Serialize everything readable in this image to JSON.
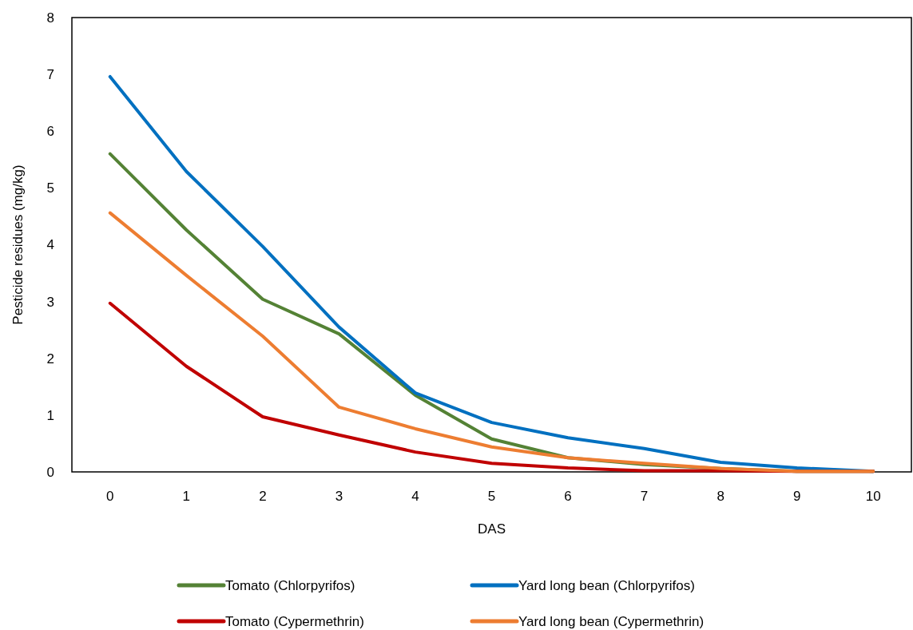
{
  "chart_data": {
    "type": "line",
    "xlabel": "DAS",
    "ylabel": "Pesticide residues (mg/kg)",
    "categories": [
      "0",
      "1",
      "2",
      "3",
      "4",
      "5",
      "6",
      "7",
      "8",
      "9",
      "10"
    ],
    "ylim": [
      0,
      8
    ],
    "yticks": [
      0,
      1,
      2,
      3,
      4,
      5,
      6,
      7,
      8
    ],
    "grid": false,
    "legend": "bottom",
    "marker": "none",
    "line_style": "solid",
    "series": [
      {
        "name": "Tomato (Chlorpyrifos)",
        "color": "#548235",
        "values": [
          5.6,
          4.26,
          3.04,
          2.43,
          1.35,
          0.58,
          0.25,
          0.13,
          0.06,
          0.01,
          0.01
        ]
      },
      {
        "name": "Yard long bean (Chlorpyrifos)",
        "color": "#0070c0",
        "values": [
          6.96,
          5.29,
          3.97,
          2.55,
          1.39,
          0.87,
          0.6,
          0.41,
          0.17,
          0.07,
          0.01
        ]
      },
      {
        "name": "Tomato (Cypermethrin)",
        "color": "#c00000",
        "values": [
          2.97,
          1.86,
          0.97,
          0.65,
          0.35,
          0.15,
          0.07,
          0.02,
          0.02,
          0.01,
          0.01
        ]
      },
      {
        "name": "Yard long bean (Cypermethrin)",
        "color": "#ed7d31",
        "values": [
          4.56,
          3.46,
          2.39,
          1.14,
          0.76,
          0.44,
          0.25,
          0.15,
          0.06,
          0.01,
          0.01
        ]
      }
    ]
  }
}
